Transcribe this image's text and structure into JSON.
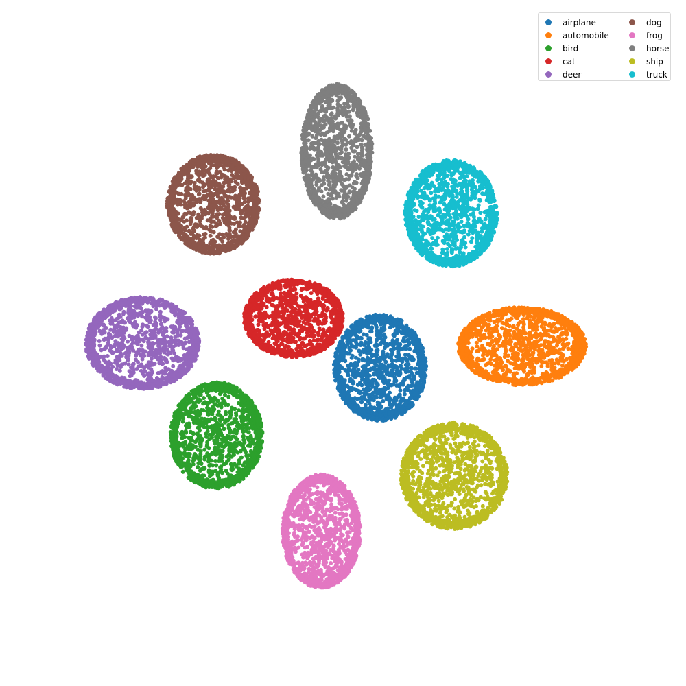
{
  "chart_data": {
    "type": "scatter",
    "title": "",
    "xlabel": "",
    "ylabel": "",
    "axes_visible": false,
    "grid": false,
    "legend": {
      "placement": "top-right",
      "columns": 2
    },
    "xlim": [
      -100,
      100
    ],
    "ylim": [
      -100,
      100
    ],
    "series": [
      {
        "name": "airplane",
        "color": "#1f77b4",
        "center": [
          12,
          -8
        ],
        "spread": [
          13,
          15
        ],
        "count": 1500
      },
      {
        "name": "automobile",
        "color": "#ff7f0e",
        "center": [
          58,
          -1
        ],
        "spread": [
          18,
          11
        ],
        "count": 1500
      },
      {
        "name": "bird",
        "color": "#2ca02c",
        "center": [
          -41,
          -30
        ],
        "spread": [
          13,
          15
        ],
        "count": 1500
      },
      {
        "name": "cat",
        "color": "#d62728",
        "center": [
          -16,
          8
        ],
        "spread": [
          14,
          11
        ],
        "count": 1500
      },
      {
        "name": "deer",
        "color": "#9467bd",
        "center": [
          -65,
          0
        ],
        "spread": [
          16,
          13
        ],
        "count": 1500
      },
      {
        "name": "dog",
        "color": "#8c564b",
        "center": [
          -42,
          45
        ],
        "spread": [
          13,
          14
        ],
        "count": 1500
      },
      {
        "name": "frog",
        "color": "#e377c2",
        "center": [
          -7,
          -61
        ],
        "spread": [
          11,
          16
        ],
        "count": 1500
      },
      {
        "name": "horse",
        "color": "#7f7f7f",
        "center": [
          -2,
          62
        ],
        "spread": [
          10,
          19
        ],
        "count": 1500
      },
      {
        "name": "ship",
        "color": "#bcbd22",
        "center": [
          36,
          -43
        ],
        "spread": [
          15,
          15
        ],
        "count": 1500
      },
      {
        "name": "truck",
        "color": "#17becf",
        "center": [
          35,
          42
        ],
        "spread": [
          13,
          15
        ],
        "count": 1500
      }
    ]
  }
}
